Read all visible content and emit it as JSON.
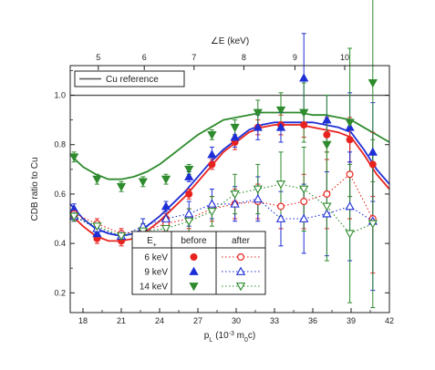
{
  "chart_data": {
    "type": "scatter",
    "title": "",
    "xlabel": "p",
    "xlabel_sub": "L",
    "xlabel_unit_prefix": "(10",
    "xlabel_unit_exp": "-3",
    "xlabel_unit_m": " m",
    "xlabel_unit_sub": "0",
    "xlabel_unit_suffix": "c)",
    "top_axis_label": "∠E (keV)",
    "ylabel": "CDB ratio to Cu",
    "xlim": [
      17,
      42
    ],
    "ylim": [
      0.12,
      1.12
    ],
    "x_ticks": [
      18,
      21,
      24,
      27,
      30,
      33,
      36,
      39,
      42
    ],
    "y_ticks": [
      0.2,
      0.4,
      0.6,
      0.8,
      1.0
    ],
    "y_tick_labels": [
      "0.2",
      "0.4",
      "0.6",
      "0.8",
      "1.0"
    ],
    "top_ticks": [
      5,
      6,
      7,
      8,
      9,
      10
    ],
    "top_tick_positions": [
      19.2,
      22.8,
      26.7,
      30.6,
      34.6,
      38.5
    ],
    "reference": {
      "name": "Cu reference",
      "y": 1.0
    },
    "legend_table": {
      "header_energy": "E",
      "header_energy_sub": "+",
      "header_before": "before",
      "header_after": "after",
      "rows": [
        "6 keV",
        "9 keV",
        "14 keV"
      ]
    },
    "series": [
      {
        "name": "6 keV before",
        "color": "#e8231f",
        "marker": "circle-filled",
        "line": "solid",
        "x": [
          17.3,
          19.1,
          21.0,
          22.7,
          24.5,
          26.3,
          28.1,
          29.9,
          31.7,
          33.5,
          35.3,
          37.1,
          38.9,
          40.7
        ],
        "y": [
          0.51,
          0.42,
          0.41,
          0.43,
          0.5,
          0.6,
          0.72,
          0.81,
          0.87,
          0.88,
          0.88,
          0.84,
          0.82,
          0.72
        ],
        "err": [
          0.02,
          0.02,
          0.02,
          0.02,
          0.02,
          0.02,
          0.02,
          0.03,
          0.03,
          0.04,
          0.05,
          0.07,
          0.09,
          0.13
        ]
      },
      {
        "name": "9 keV before",
        "color": "#1f2fd6",
        "marker": "triangle-up-filled",
        "line": "solid",
        "x": [
          17.3,
          19.1,
          21.0,
          22.7,
          24.5,
          26.3,
          28.1,
          29.9,
          31.7,
          33.5,
          35.3,
          37.1,
          38.9,
          40.7
        ],
        "y": [
          0.54,
          0.44,
          0.43,
          0.46,
          0.55,
          0.67,
          0.76,
          0.83,
          0.87,
          0.87,
          1.07,
          0.9,
          0.87,
          0.77
        ],
        "err": [
          0.02,
          0.02,
          0.02,
          0.02,
          0.02,
          0.02,
          0.03,
          0.04,
          0.05,
          0.06,
          0.18,
          0.1,
          0.14,
          0.2
        ]
      },
      {
        "name": "14 keV before",
        "color": "#2e8b2e",
        "marker": "triangle-down-filled",
        "line": "solid",
        "x": [
          17.3,
          19.1,
          21.0,
          22.7,
          24.5,
          26.3,
          28.1,
          29.9,
          31.7,
          33.5,
          35.3,
          37.1,
          38.9,
          40.7
        ],
        "y": [
          0.75,
          0.66,
          0.63,
          0.65,
          0.66,
          0.7,
          0.84,
          0.87,
          0.93,
          0.94,
          0.93,
          0.8,
          0.89,
          1.05
        ],
        "err": [
          0.02,
          0.02,
          0.02,
          0.02,
          0.02,
          0.02,
          0.02,
          0.03,
          0.05,
          0.07,
          0.12,
          0.2,
          0.3,
          0.4
        ]
      },
      {
        "name": "6 keV after",
        "color": "#e8231f",
        "marker": "circle-open",
        "line": "dotted",
        "x": [
          17.3,
          19.1,
          21.0,
          22.7,
          24.5,
          26.3,
          28.1,
          29.9,
          31.7,
          33.5,
          35.3,
          37.1,
          38.9,
          40.7
        ],
        "y": [
          0.52,
          0.48,
          0.44,
          0.45,
          0.48,
          0.5,
          0.54,
          0.56,
          0.57,
          0.55,
          0.57,
          0.6,
          0.68,
          0.5
        ],
        "err": [
          0.02,
          0.02,
          0.02,
          0.02,
          0.03,
          0.04,
          0.05,
          0.06,
          0.07,
          0.09,
          0.11,
          0.14,
          0.18,
          0.22
        ]
      },
      {
        "name": "9 keV after",
        "color": "#1f2fd6",
        "marker": "triangle-up-open",
        "line": "dotted",
        "x": [
          17.3,
          19.1,
          21.0,
          22.7,
          24.5,
          26.3,
          28.1,
          29.9,
          31.7,
          33.5,
          35.3,
          37.1,
          38.9,
          40.7
        ],
        "y": [
          0.51,
          0.46,
          0.43,
          0.47,
          0.5,
          0.52,
          0.56,
          0.56,
          0.58,
          0.5,
          0.5,
          0.52,
          0.55,
          0.49
        ],
        "err": [
          0.02,
          0.02,
          0.02,
          0.03,
          0.04,
          0.05,
          0.06,
          0.07,
          0.09,
          0.11,
          0.14,
          0.17,
          0.22,
          0.28
        ]
      },
      {
        "name": "14 keV after",
        "color": "#2e8b2e",
        "marker": "triangle-down-open",
        "line": "dotted",
        "x": [
          17.3,
          19.1,
          21.0,
          22.7,
          24.5,
          26.3,
          28.1,
          29.9,
          31.7,
          33.5,
          35.3,
          37.1,
          38.9,
          40.7
        ],
        "y": [
          0.51,
          0.47,
          0.43,
          0.45,
          0.46,
          0.49,
          0.53,
          0.6,
          0.62,
          0.64,
          0.62,
          0.55,
          0.44,
          0.48
        ],
        "err": [
          0.02,
          0.02,
          0.02,
          0.03,
          0.04,
          0.05,
          0.06,
          0.08,
          0.1,
          0.13,
          0.17,
          0.22,
          0.28,
          0.34
        ]
      }
    ],
    "fits": [
      {
        "series": "6 keV before",
        "color": "#e8231f",
        "x": [
          17,
          18,
          19,
          20,
          21,
          22,
          23,
          24,
          25,
          26,
          27,
          28,
          29,
          30,
          31,
          32,
          33,
          34,
          35,
          36,
          37,
          38,
          39,
          40,
          41,
          42
        ],
        "y": [
          0.52,
          0.47,
          0.43,
          0.41,
          0.41,
          0.42,
          0.45,
          0.49,
          0.54,
          0.59,
          0.65,
          0.71,
          0.77,
          0.81,
          0.85,
          0.87,
          0.88,
          0.88,
          0.88,
          0.87,
          0.86,
          0.85,
          0.83,
          0.76,
          0.68,
          0.62
        ]
      },
      {
        "series": "9 keV before",
        "color": "#1f2fd6",
        "x": [
          17,
          18,
          19,
          20,
          21,
          22,
          23,
          24,
          25,
          26,
          27,
          28,
          29,
          30,
          31,
          32,
          33,
          34,
          35,
          36,
          37,
          38,
          39,
          40,
          41,
          42
        ],
        "y": [
          0.56,
          0.5,
          0.46,
          0.44,
          0.43,
          0.44,
          0.47,
          0.51,
          0.56,
          0.61,
          0.67,
          0.73,
          0.78,
          0.82,
          0.86,
          0.88,
          0.89,
          0.89,
          0.89,
          0.89,
          0.88,
          0.87,
          0.85,
          0.78,
          0.7,
          0.64
        ]
      },
      {
        "series": "14 keV before",
        "color": "#2e8b2e",
        "x": [
          17,
          18,
          19,
          20,
          21,
          22,
          23,
          24,
          25,
          26,
          27,
          28,
          29,
          30,
          31,
          32,
          33,
          34,
          35,
          36,
          37,
          38,
          39,
          40,
          41,
          42
        ],
        "y": [
          0.76,
          0.71,
          0.68,
          0.66,
          0.66,
          0.67,
          0.69,
          0.72,
          0.76,
          0.8,
          0.84,
          0.87,
          0.9,
          0.91,
          0.92,
          0.93,
          0.93,
          0.93,
          0.93,
          0.92,
          0.92,
          0.91,
          0.9,
          0.87,
          0.84,
          0.81
        ]
      }
    ]
  }
}
